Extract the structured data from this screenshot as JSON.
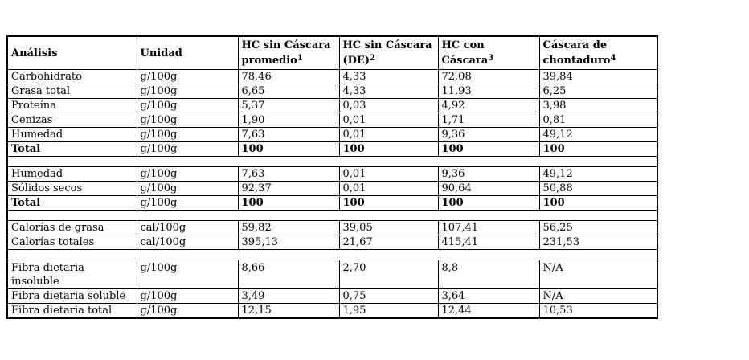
{
  "header": {
    "analisis": "Análisis",
    "unidad": "Unidad",
    "col3_line1": "HC sin Cáscara",
    "col3_line2": "promedio",
    "col3_sup": "1",
    "col4_line1": "HC sin Cáscara",
    "col4_line2": "(DE)",
    "col4_sup": "2",
    "col5_line1": "HC con",
    "col5_line2": "Cáscara",
    "col5_sup": "3",
    "col6_line1": "Cáscara de",
    "col6_line2": "chontaduro",
    "col6_sup": "4"
  },
  "rows": [
    {
      "label": "Carbohidrato",
      "unit": "g/100g",
      "v1": "78,46",
      "v2": "4,33",
      "v3": "72,08",
      "v4": "39,84"
    },
    {
      "label": "Grasa total",
      "unit": "g/100g",
      "v1": "6,65",
      "v2": "4,33",
      "v3": "11,93",
      "v4": "6,25"
    },
    {
      "label": "Proteína",
      "unit": "g/100g",
      "v1": "5,37",
      "v2": "0,03",
      "v3": "4,92",
      "v4": "3,98"
    },
    {
      "label": "Cenizas",
      "unit": "g/100g",
      "v1": "1,90",
      "v2": "0,01",
      "v3": "1,71",
      "v4": "0,81"
    },
    {
      "label": "Humedad",
      "unit": "g/100g",
      "v1": "7,63",
      "v2": "0,01",
      "v3": "9,36",
      "v4": "49,12"
    },
    {
      "label": "Total",
      "unit": "g/100g",
      "v1": "100",
      "v2": "100",
      "v3": "100",
      "v4": "100"
    },
    {
      "label": "Humedad",
      "unit": "g/100g",
      "v1": "7,63",
      "v2": "0,01",
      "v3": "9,36",
      "v4": "49,12"
    },
    {
      "label": "Sólidos secos",
      "unit": "g/100g",
      "v1": "92,37",
      "v2": "0,01",
      "v3": "90,64",
      "v4": "50,88"
    },
    {
      "label": "Total",
      "unit": "g/100g",
      "v1": "100",
      "v2": "100",
      "v3": "100",
      "v4": "100"
    },
    {
      "label": "Calorías de grasa",
      "unit": "cal/100g",
      "v1": "59,82",
      "v2": "39,05",
      "v3": "107,41",
      "v4": "56,25"
    },
    {
      "label": "Calorías totales",
      "unit": "cal/100g",
      "v1": "395,13",
      "v2": "21,67",
      "v3": "415,41",
      "v4": "231,53"
    },
    {
      "label": "Fibra dietaria insoluble",
      "unit": "g/100g",
      "v1": "8,66",
      "v2": "2,70",
      "v3": "8,8",
      "v4": "N/A"
    },
    {
      "label": "Fibra dietaria soluble",
      "unit": "g/100g",
      "v1": "3,49",
      "v2": "0,75",
      "v3": "3,64",
      "v4": "N/A"
    },
    {
      "label": "Fibra dietaria total",
      "unit": "g/100g",
      "v1": "12,15",
      "v2": "1,95",
      "v3": "12,44",
      "v4": "10,53"
    }
  ]
}
